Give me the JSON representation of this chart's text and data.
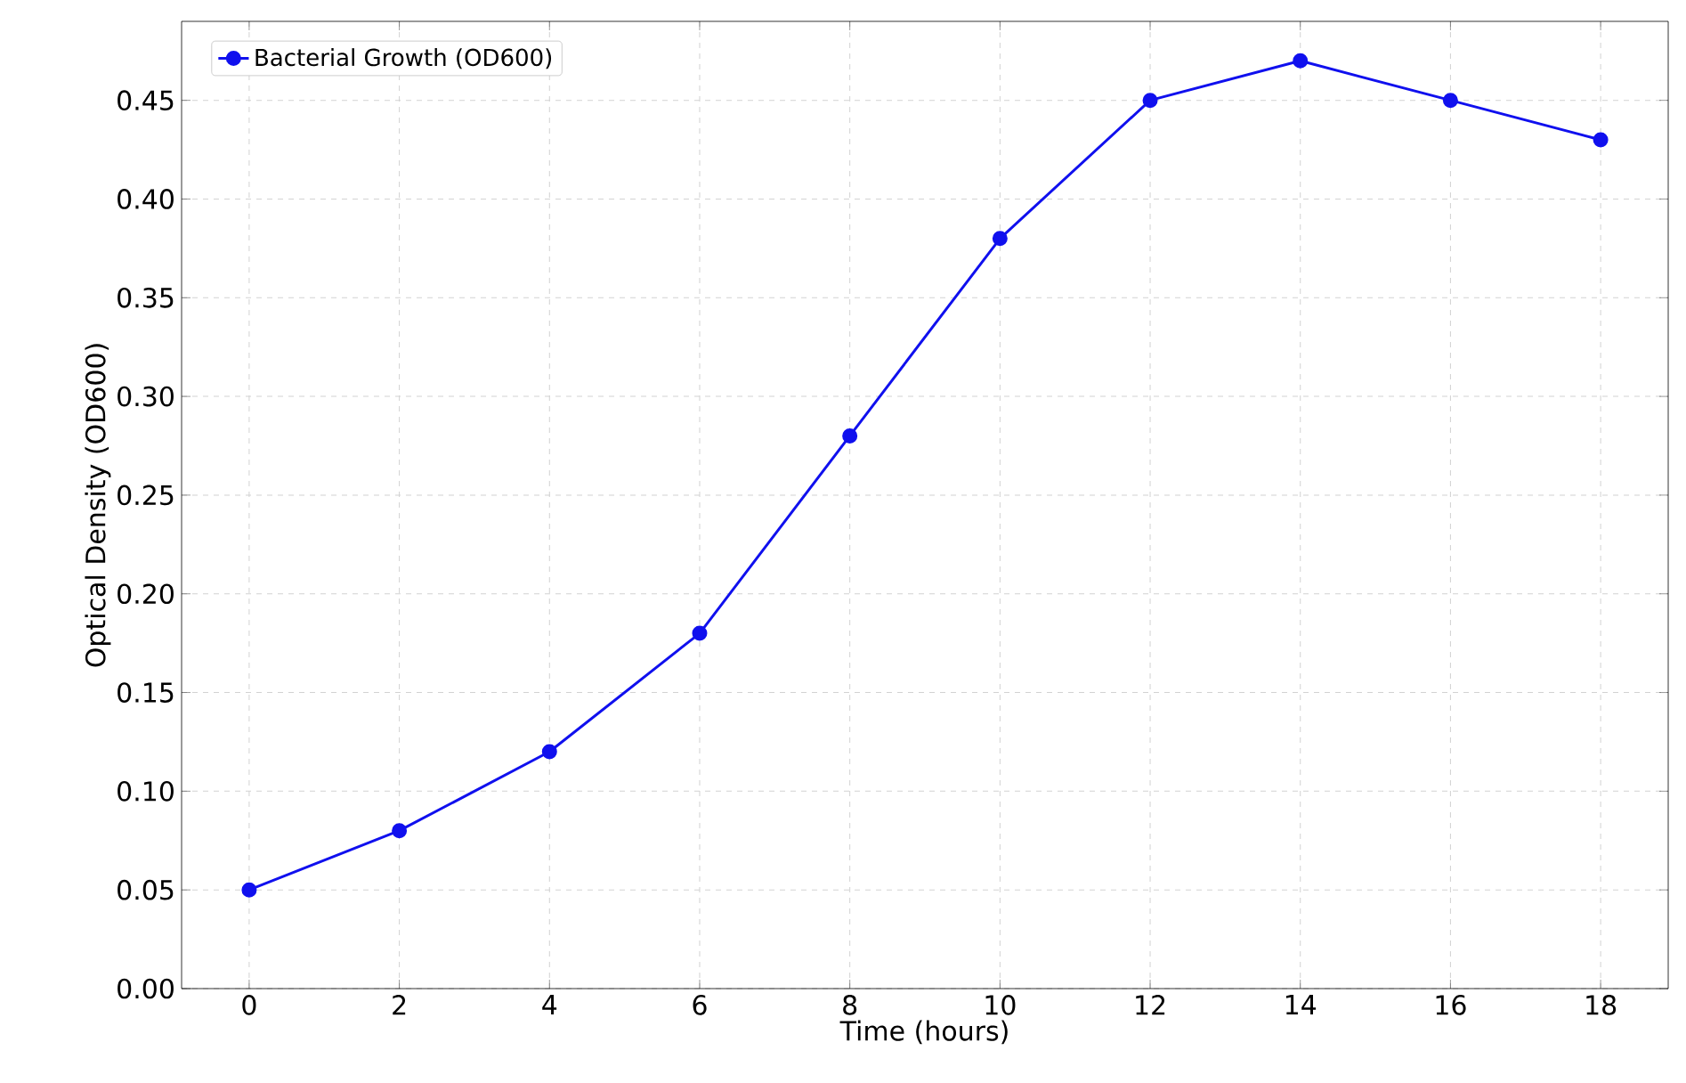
{
  "chart_data": {
    "type": "line",
    "xlabel": "Time (hours)",
    "ylabel": "Optical Density (OD600)",
    "x": [
      0,
      2,
      4,
      6,
      8,
      10,
      12,
      14,
      16,
      18
    ],
    "series": [
      {
        "name": "Bacterial Growth (OD600)",
        "color": "#1010ee",
        "values": [
          0.05,
          0.08,
          0.12,
          0.18,
          0.28,
          0.38,
          0.45,
          0.47,
          0.45,
          0.43
        ]
      }
    ],
    "xlim": [
      -0.9,
      18.9
    ],
    "ylim": [
      0,
      0.49
    ],
    "xticks": [
      0,
      2,
      4,
      6,
      8,
      10,
      12,
      14,
      16,
      18
    ],
    "yticks": [
      {
        "value": 0,
        "label": "0.00"
      },
      {
        "value": 0.05,
        "label": "0.05"
      },
      {
        "value": 0.1,
        "label": "0.10"
      },
      {
        "value": 0.15,
        "label": "0.15"
      },
      {
        "value": 0.2,
        "label": "0.20"
      },
      {
        "value": 0.25,
        "label": "0.25"
      },
      {
        "value": 0.3,
        "label": "0.30"
      },
      {
        "value": 0.35,
        "label": "0.35"
      },
      {
        "value": 0.4,
        "label": "0.40"
      },
      {
        "value": 0.45,
        "label": "0.45"
      }
    ],
    "grid": true,
    "legend": "top left",
    "marker": "circle",
    "line_style": "solid"
  }
}
